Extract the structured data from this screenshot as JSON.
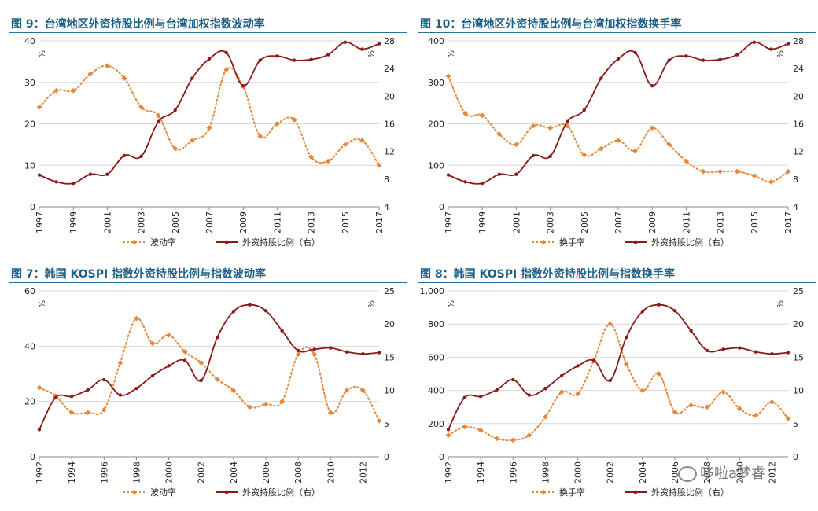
{
  "chart_data": [
    {
      "type": "line",
      "title": "图 9：台湾地区外资持股比例与台湾加权指数波动率",
      "x": [
        1997,
        1998,
        1999,
        2000,
        2001,
        2002,
        2003,
        2004,
        2005,
        2006,
        2007,
        2008,
        2009,
        2010,
        2011,
        2012,
        2013,
        2014,
        2015,
        2016,
        2017
      ],
      "x_ticks": [
        "1997",
        "1999",
        "2001",
        "2003",
        "2005",
        "2007",
        "2009",
        "2011",
        "2013",
        "2015",
        "2017"
      ],
      "y_left": {
        "ticks": [
          "0",
          "10",
          "20",
          "30",
          "40"
        ],
        "lim": [
          0,
          40
        ],
        "unit": "%"
      },
      "y_right": {
        "ticks": [
          "4",
          "8",
          "12",
          "16",
          "20",
          "24",
          "28"
        ],
        "lim": [
          4,
          28
        ],
        "unit": "%"
      },
      "series": [
        {
          "name": "波动率",
          "axis": "left",
          "style": "dotted",
          "color": "#e8873a",
          "values": [
            24,
            28,
            28,
            32,
            34,
            31,
            24,
            22,
            14,
            16,
            19,
            33,
            29,
            17,
            20,
            21,
            12,
            11,
            15,
            16,
            10
          ]
        },
        {
          "name": "外资持股比例（右）",
          "axis": "right",
          "style": "solid",
          "color": "#8b1a1a",
          "values": [
            8.6,
            7.6,
            7.4,
            8.7,
            8.7,
            11.4,
            11.3,
            16.3,
            18.0,
            22.6,
            25.4,
            26.3,
            21.5,
            25.2,
            25.8,
            25.2,
            25.3,
            26.0,
            27.8,
            26.8,
            27.6
          ]
        }
      ]
    },
    {
      "type": "line",
      "title": "图 10：台湾地区外资持股比例与台湾加权指数换手率",
      "x": [
        1997,
        1998,
        1999,
        2000,
        2001,
        2002,
        2003,
        2004,
        2005,
        2006,
        2007,
        2008,
        2009,
        2010,
        2011,
        2012,
        2013,
        2014,
        2015,
        2016,
        2017
      ],
      "x_ticks": [
        "1997",
        "1999",
        "2001",
        "2003",
        "2005",
        "2007",
        "2009",
        "2011",
        "2013",
        "2015",
        "2017"
      ],
      "y_left": {
        "ticks": [
          "0",
          "100",
          "200",
          "300",
          "400"
        ],
        "lim": [
          0,
          400
        ],
        "unit": "%"
      },
      "y_right": {
        "ticks": [
          "4",
          "8",
          "12",
          "16",
          "20",
          "24",
          "28"
        ],
        "lim": [
          4,
          28
        ],
        "unit": "%"
      },
      "series": [
        {
          "name": "换手率",
          "axis": "left",
          "style": "dotted",
          "color": "#e8873a",
          "values": [
            315,
            225,
            220,
            175,
            150,
            195,
            190,
            195,
            125,
            140,
            160,
            135,
            190,
            150,
            110,
            85,
            85,
            85,
            75,
            60,
            85
          ]
        },
        {
          "name": "外资持股比例（右）",
          "axis": "right",
          "style": "solid",
          "color": "#8b1a1a",
          "values": [
            8.6,
            7.6,
            7.4,
            8.7,
            8.7,
            11.4,
            11.3,
            16.3,
            18.0,
            22.6,
            25.4,
            26.3,
            21.5,
            25.2,
            25.8,
            25.2,
            25.3,
            26.0,
            27.8,
            26.8,
            27.6
          ]
        }
      ]
    },
    {
      "type": "line",
      "title": "图 7：韩国 KOSPI 指数外资持股比例与指数波动率",
      "x": [
        1992,
        1993,
        1994,
        1995,
        1996,
        1997,
        1998,
        1999,
        2000,
        2001,
        2002,
        2003,
        2004,
        2005,
        2006,
        2007,
        2008,
        2009,
        2010,
        2011,
        2012,
        2013
      ],
      "x_ticks": [
        "1992",
        "1994",
        "1996",
        "1998",
        "2000",
        "2002",
        "2004",
        "2006",
        "2008",
        "2010",
        "2012"
      ],
      "y_left": {
        "ticks": [
          "0",
          "20",
          "40",
          "60"
        ],
        "lim": [
          0,
          60
        ],
        "unit": "%"
      },
      "y_right": {
        "ticks": [
          "0",
          "5",
          "10",
          "15",
          "20",
          "25"
        ],
        "lim": [
          0,
          25
        ],
        "unit": "%"
      },
      "series": [
        {
          "name": "波动率",
          "axis": "left",
          "style": "dotted",
          "color": "#e8873a",
          "values": [
            25,
            22,
            16,
            16,
            17,
            34,
            50,
            41,
            44,
            38,
            34,
            28,
            24,
            18,
            19,
            20,
            37,
            37,
            16,
            24,
            24,
            13
          ]
        },
        {
          "name": "外资持股比例（右）",
          "axis": "right",
          "style": "solid",
          "color": "#8b1a1a",
          "values": [
            4.1,
            8.9,
            9.1,
            10.1,
            11.6,
            9.3,
            10.3,
            12.2,
            13.7,
            14.5,
            11.5,
            18,
            21.9,
            22.9,
            22,
            19,
            16,
            16.2,
            16.4,
            15.8,
            15.5,
            15.7
          ]
        }
      ]
    },
    {
      "type": "line",
      "title": "图 8：韩国 KOSPI 指数外资持股比例与指数换手率",
      "x": [
        1992,
        1993,
        1994,
        1995,
        1996,
        1997,
        1998,
        1999,
        2000,
        2001,
        2002,
        2003,
        2004,
        2005,
        2006,
        2007,
        2008,
        2009,
        2010,
        2011,
        2012,
        2013
      ],
      "x_ticks": [
        "1992",
        "1994",
        "1996",
        "1998",
        "2000",
        "2002",
        "2004",
        "2006",
        "2008",
        "2010",
        "2012"
      ],
      "y_left": {
        "ticks": [
          "0",
          "200",
          "400",
          "600",
          "800",
          "1,000"
        ],
        "lim": [
          0,
          1000
        ],
        "unit": "%"
      },
      "y_right": {
        "ticks": [
          "0",
          "5",
          "10",
          "15",
          "20",
          "25"
        ],
        "lim": [
          0,
          25
        ],
        "unit": "%"
      },
      "series": [
        {
          "name": "换手率",
          "axis": "left",
          "style": "dotted",
          "color": "#e8873a",
          "values": [
            130,
            180,
            160,
            110,
            100,
            130,
            240,
            390,
            380,
            580,
            800,
            560,
            400,
            500,
            270,
            310,
            300,
            390,
            290,
            250,
            330,
            230
          ]
        },
        {
          "name": "外资持股比例（右）",
          "axis": "right",
          "style": "solid",
          "color": "#8b1a1a",
          "values": [
            4.1,
            8.9,
            9.1,
            10.1,
            11.6,
            9.3,
            10.3,
            12.2,
            13.7,
            14.5,
            11.5,
            18,
            21.9,
            22.9,
            22,
            19,
            16,
            16.2,
            16.4,
            15.8,
            15.5,
            15.7
          ]
        }
      ]
    }
  ],
  "watermark": {
    "text": "哆啦a梦睿",
    "icon": "wechat-icon"
  }
}
